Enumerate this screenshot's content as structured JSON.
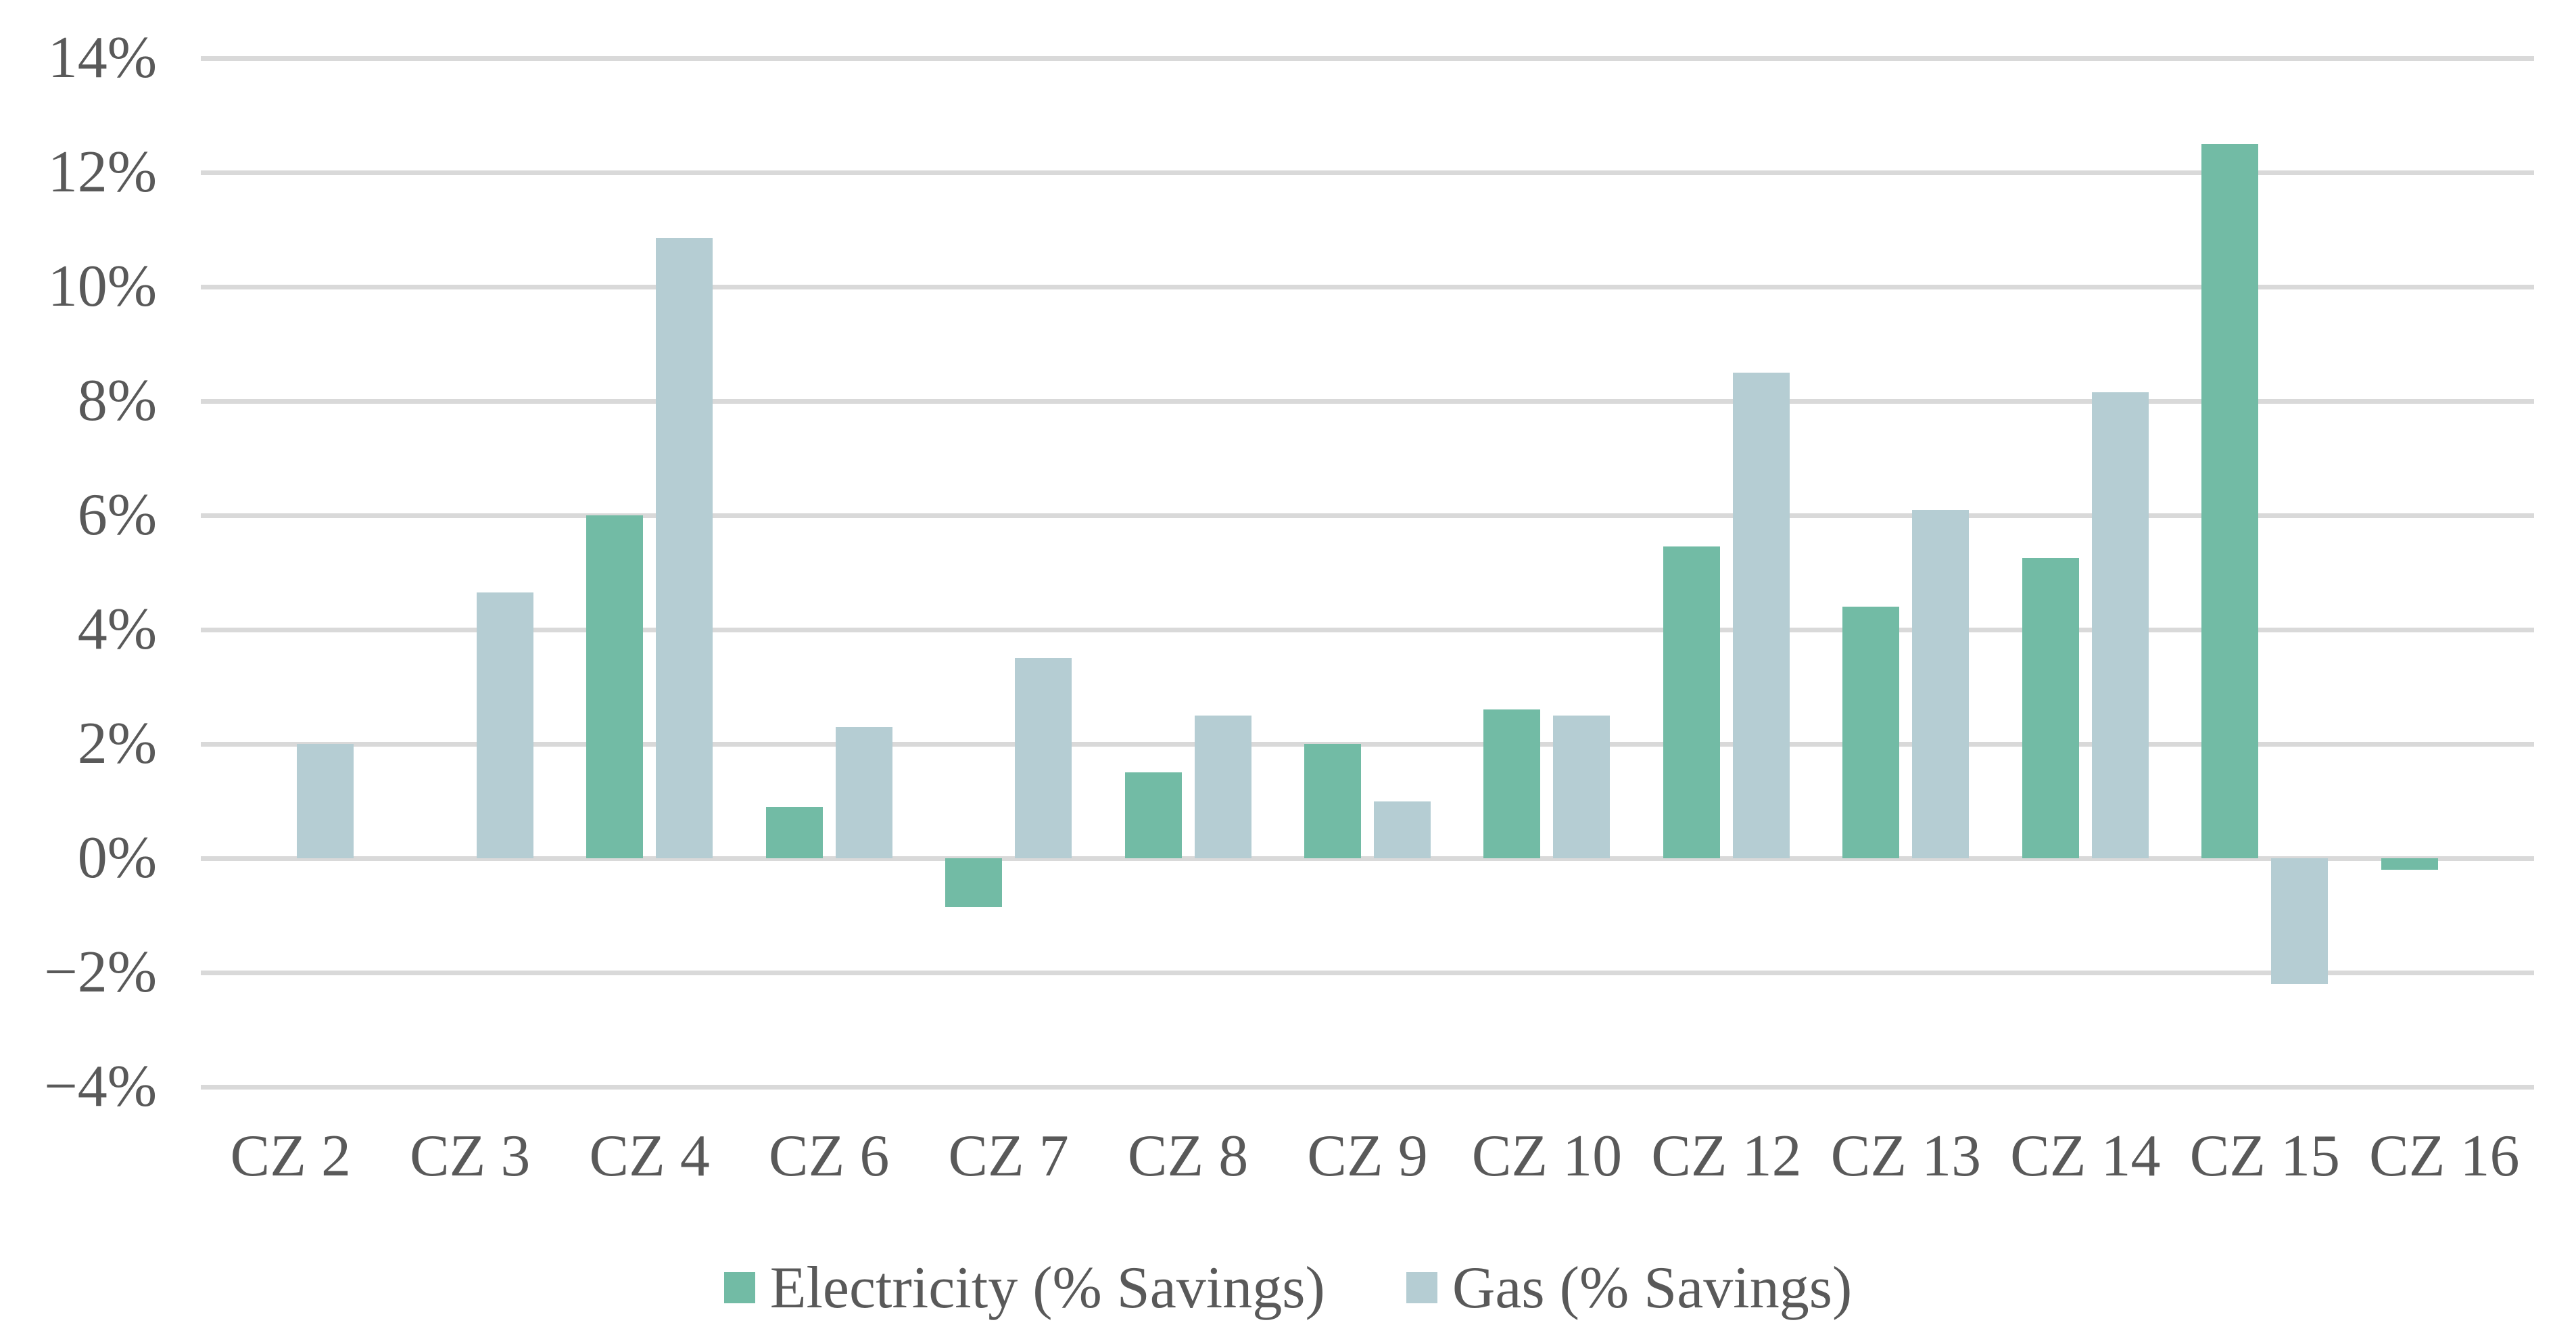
{
  "chart_data": {
    "type": "bar",
    "title": "",
    "categories": [
      "CZ 2",
      "CZ 3",
      "CZ 4",
      "CZ 6",
      "CZ 7",
      "CZ 8",
      "CZ 9",
      "CZ 10",
      "CZ 12",
      "CZ 13",
      "CZ 14",
      "CZ 15",
      "CZ 16"
    ],
    "series": [
      {
        "name": "Electricity (% Savings)",
        "color": "#72BBA5",
        "values": [
          null,
          null,
          6.0,
          0.9,
          -0.85,
          1.5,
          2.0,
          2.6,
          5.45,
          4.4,
          5.25,
          12.5,
          -0.2
        ]
      },
      {
        "name": "Gas (% Savings)",
        "color": "#B5CDD3",
        "values": [
          2.0,
          4.65,
          10.85,
          2.3,
          3.5,
          2.5,
          1.0,
          2.5,
          8.5,
          6.1,
          8.15,
          -2.2,
          null
        ]
      }
    ],
    "y_axis": {
      "min": -4,
      "max": 14,
      "step": 2,
      "tick_labels": [
        "14%",
        "12%",
        "10%",
        "8%",
        "6%",
        "4%",
        "2%",
        "0%",
        "−2%",
        "−4%"
      ]
    },
    "grid": true,
    "legend_position": "bottom"
  },
  "style": {
    "grid_color": "#D9D9D9",
    "text_color": "#595959",
    "background": "#FFFFFF"
  }
}
